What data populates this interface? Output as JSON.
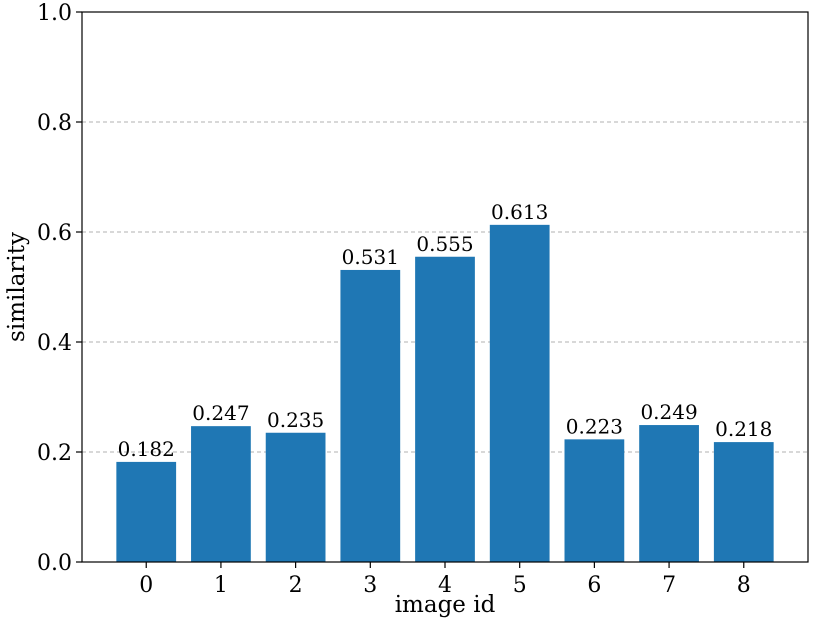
{
  "chart_data": {
    "type": "bar",
    "categories": [
      "0",
      "1",
      "2",
      "3",
      "4",
      "5",
      "6",
      "7",
      "8"
    ],
    "values": [
      0.182,
      0.247,
      0.235,
      0.531,
      0.555,
      0.613,
      0.223,
      0.249,
      0.218
    ],
    "value_labels": [
      "0.182",
      "0.247",
      "0.235",
      "0.531",
      "0.555",
      "0.613",
      "0.223",
      "0.249",
      "0.218"
    ],
    "xlabel": "image id",
    "ylabel": "similarity",
    "ylim": [
      0,
      1.0
    ],
    "yticks": [
      "0.0",
      "0.2",
      "0.4",
      "0.6",
      "0.8",
      "1.0"
    ],
    "grid": "horizontal dashed",
    "bar_color": "#1f77b4"
  }
}
